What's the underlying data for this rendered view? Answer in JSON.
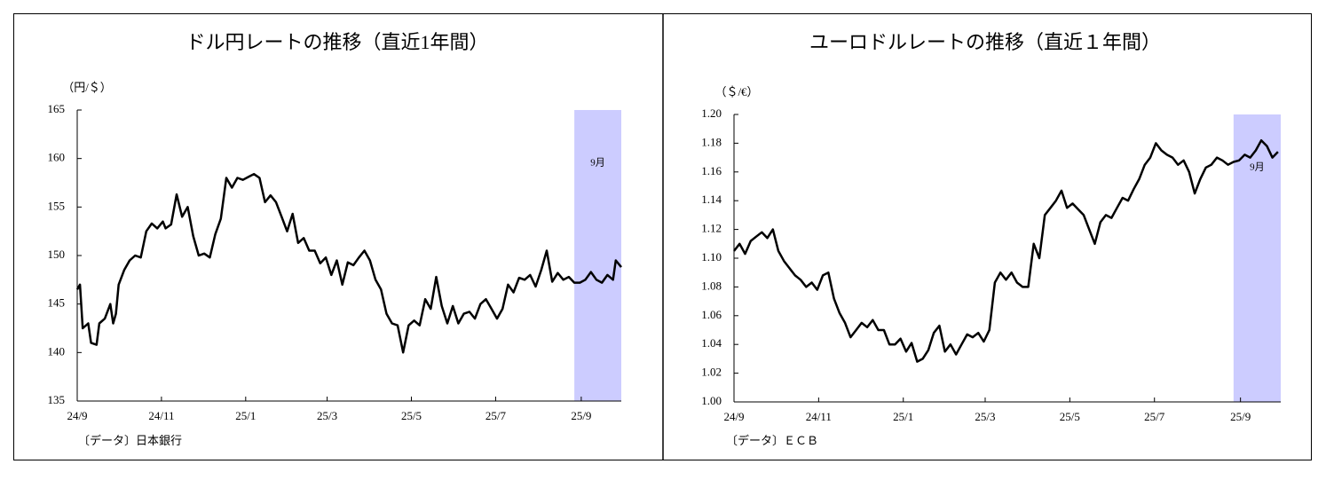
{
  "chart_data": [
    {
      "type": "line",
      "title": "ドル円レートの推移（直近1年間）",
      "unit_label": "（円/＄）",
      "source": "〔データ〕日本銀行",
      "color": "#000000",
      "x": [
        0,
        2,
        4,
        8,
        10,
        14,
        16,
        20,
        24,
        26,
        28,
        30,
        34,
        38,
        42,
        46,
        50,
        54,
        58,
        62,
        64,
        68,
        72,
        76,
        80,
        84,
        88,
        92,
        96,
        100,
        104,
        108,
        112,
        116,
        120,
        124,
        128,
        132,
        136,
        140,
        144,
        148,
        152,
        156,
        160,
        164,
        168,
        172,
        176,
        180,
        184,
        188,
        192,
        196,
        200,
        204,
        208,
        212,
        216,
        220,
        224,
        228,
        232,
        236,
        240,
        244,
        248,
        252,
        256,
        260,
        264,
        268,
        272,
        276,
        280,
        284,
        288,
        292,
        296,
        300,
        304,
        308,
        312,
        316,
        320,
        324,
        328,
        332,
        336,
        340,
        344,
        348,
        352,
        356,
        360,
        364,
        368,
        372,
        376,
        380,
        384,
        388,
        390,
        394
      ],
      "values": [
        146.5,
        147,
        142.5,
        143,
        141,
        140.8,
        143,
        143.5,
        145,
        143,
        144,
        147,
        148.5,
        149.5,
        150,
        149.8,
        152.5,
        153.3,
        152.8,
        153.5,
        152.8,
        153.2,
        156.3,
        154,
        155,
        152,
        150,
        150.2,
        149.8,
        152.2,
        153.8,
        158,
        157,
        158,
        157.8,
        158.1,
        158.4,
        158,
        155.5,
        156.2,
        155.5,
        154,
        152.5,
        154.3,
        151.3,
        151.8,
        150.5,
        150.5,
        149.2,
        149.8,
        148,
        149.5,
        147,
        149.3,
        149,
        149.8,
        150.5,
        149.5,
        147.5,
        146.5,
        144,
        143,
        142.8,
        140,
        142.8,
        143.3,
        142.8,
        145.5,
        144.5,
        147.8,
        144.8,
        143,
        144.8,
        143,
        144,
        144.2,
        143.5,
        145,
        145.5,
        144.5,
        143.5,
        144.5,
        147,
        146.2,
        147.7,
        147.5,
        148,
        146.8,
        148.5,
        150.5,
        147.3,
        148.2,
        147.5,
        147.8,
        147.2,
        147.2,
        147.5,
        148.3,
        147.5,
        147.2,
        148,
        147.5,
        149.5,
        148.8
      ],
      "xlim": [
        0,
        394
      ],
      "xticks": [
        {
          "value": 0,
          "label": "24/9"
        },
        {
          "value": 61,
          "label": "24/11"
        },
        {
          "value": 122,
          "label": "25/1"
        },
        {
          "value": 181,
          "label": "25/3"
        },
        {
          "value": 242,
          "label": "25/5"
        },
        {
          "value": 303,
          "label": "25/7"
        },
        {
          "value": 365,
          "label": "25/9"
        }
      ],
      "ylim": [
        135,
        165
      ],
      "yticks": [
        135,
        140,
        145,
        150,
        155,
        160,
        165
      ],
      "highlight": {
        "range": [
          360,
          394
        ],
        "label": "9月",
        "color": "#ccccff"
      }
    },
    {
      "type": "line",
      "title": "ユーロドルレートの推移（直近１年間）",
      "unit_label": "（＄/€）",
      "source": "〔データ〕ＥＣＢ",
      "color": "#000000",
      "x": [
        0,
        4,
        8,
        12,
        16,
        20,
        24,
        28,
        32,
        36,
        40,
        44,
        48,
        52,
        56,
        60,
        64,
        68,
        72,
        76,
        80,
        84,
        88,
        92,
        96,
        100,
        104,
        108,
        112,
        116,
        120,
        124,
        128,
        132,
        136,
        140,
        144,
        148,
        152,
        156,
        160,
        164,
        168,
        172,
        176,
        180,
        184,
        188,
        192,
        196,
        200,
        204,
        208,
        212,
        216,
        220,
        224,
        228,
        232,
        236,
        240,
        244,
        248,
        252,
        256,
        260,
        264,
        268,
        272,
        276,
        280,
        284,
        288,
        292,
        296,
        300,
        304,
        308,
        312,
        316,
        320,
        324,
        328,
        332,
        336,
        340,
        344,
        348,
        352,
        356,
        360,
        364,
        368,
        372,
        376,
        380,
        384,
        388,
        392
      ],
      "values": [
        1.105,
        1.11,
        1.103,
        1.112,
        1.115,
        1.118,
        1.114,
        1.12,
        1.105,
        1.098,
        1.093,
        1.088,
        1.085,
        1.08,
        1.083,
        1.078,
        1.088,
        1.09,
        1.072,
        1.062,
        1.055,
        1.045,
        1.05,
        1.055,
        1.052,
        1.057,
        1.05,
        1.05,
        1.04,
        1.04,
        1.044,
        1.035,
        1.041,
        1.028,
        1.03,
        1.036,
        1.048,
        1.053,
        1.035,
        1.04,
        1.033,
        1.04,
        1.047,
        1.045,
        1.048,
        1.042,
        1.05,
        1.083,
        1.09,
        1.085,
        1.09,
        1.083,
        1.08,
        1.08,
        1.11,
        1.1,
        1.13,
        1.135,
        1.14,
        1.147,
        1.135,
        1.138,
        1.134,
        1.13,
        1.12,
        1.11,
        1.125,
        1.13,
        1.128,
        1.135,
        1.142,
        1.14,
        1.148,
        1.155,
        1.165,
        1.17,
        1.18,
        1.175,
        1.172,
        1.17,
        1.165,
        1.168,
        1.16,
        1.145,
        1.155,
        1.163,
        1.165,
        1.17,
        1.168,
        1.165,
        1.167,
        1.168,
        1.172,
        1.17,
        1.175,
        1.182,
        1.178,
        1.17,
        1.174
      ],
      "xlim": [
        0,
        394
      ],
      "xticks": [
        {
          "value": 0,
          "label": "24/9"
        },
        {
          "value": 61,
          "label": "24/11"
        },
        {
          "value": 122,
          "label": "25/1"
        },
        {
          "value": 181,
          "label": "25/3"
        },
        {
          "value": 242,
          "label": "25/5"
        },
        {
          "value": 303,
          "label": "25/7"
        },
        {
          "value": 365,
          "label": "25/9"
        }
      ],
      "ylim": [
        1.0,
        1.2
      ],
      "yticks": [
        {
          "value": 1.0,
          "label": "1.00"
        },
        {
          "value": 1.02,
          "label": "1.02"
        },
        {
          "value": 1.04,
          "label": "1.04"
        },
        {
          "value": 1.06,
          "label": "1.06"
        },
        {
          "value": 1.08,
          "label": "1.08"
        },
        {
          "value": 1.1,
          "label": "1.10"
        },
        {
          "value": 1.12,
          "label": "1.12"
        },
        {
          "value": 1.14,
          "label": "1.14"
        },
        {
          "value": 1.16,
          "label": "1.16"
        },
        {
          "value": 1.18,
          "label": "1.18"
        },
        {
          "value": 1.2,
          "label": "1.20"
        }
      ],
      "highlight": {
        "range": [
          360,
          394
        ],
        "label": "9月",
        "color": "#ccccff"
      }
    }
  ]
}
